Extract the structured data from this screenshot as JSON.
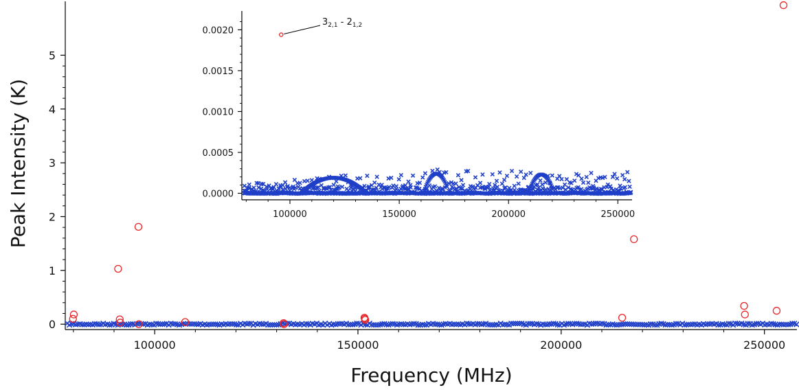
{
  "chart_data": [
    {
      "type": "scatter",
      "title": "",
      "xlabel": "Frequency (MHz)",
      "ylabel": "Peak Intensity (K)",
      "xlim": [
        78000,
        258000
      ],
      "ylim": [
        -0.1,
        5.95
      ],
      "xticks": [
        100000,
        150000,
        200000,
        250000
      ],
      "yticks": [
        0,
        1,
        2,
        3,
        4,
        5
      ],
      "grid": false,
      "legend": "none",
      "colors": {
        "detected": "#e8262a",
        "predicted": "#1f3fc8"
      },
      "series": [
        {
          "marker": "circle",
          "color": "#e8262a",
          "points": [
            [
              80100,
              0.18
            ],
            [
              79900,
              0.1
            ],
            [
              91000,
              1.03
            ],
            [
              91400,
              0.09
            ],
            [
              91500,
              0.03
            ],
            [
              96000,
              1.81
            ],
            [
              96100,
              0.0
            ],
            [
              107500,
              0.04
            ],
            [
              131700,
              0.02
            ],
            [
              131800,
              0.0
            ],
            [
              151600,
              0.12
            ],
            [
              151700,
              0.1
            ],
            [
              151800,
              0.08
            ],
            [
              215000,
              0.12
            ],
            [
              217900,
              1.58
            ],
            [
              245000,
              0.34
            ],
            [
              245200,
              0.18
            ],
            [
              253000,
              0.25
            ],
            [
              254700,
              5.93
            ]
          ]
        },
        {
          "marker": "cross",
          "color": "#1f3fc8",
          "x_range": [
            78000,
            258000
          ],
          "level": 0.0
        }
      ]
    },
    {
      "type": "scatter",
      "title": "",
      "xlabel": "",
      "ylabel": "",
      "xlim": [
        78000,
        256500
      ],
      "ylim": [
        -8e-05,
        0.00223
      ],
      "xticks": [
        100000,
        150000,
        200000,
        250000
      ],
      "yticks": [
        "0.0000",
        "0.0005",
        "0.0010",
        "0.0015",
        "0.0020"
      ],
      "grid": false,
      "annotation": {
        "point": [
          96000,
          0.00194
        ],
        "base": "3",
        "sub1": "2,1",
        "sep": " - ",
        "base2": "2",
        "sub2": "1,2"
      },
      "series": [
        {
          "marker": "circle",
          "color": "#e8262a",
          "points": [
            [
              96000,
              0.00194
            ]
          ]
        },
        {
          "marker": "cross",
          "color": "#1f3fc8",
          "x_range": [
            79000,
            256000
          ],
          "envelope": [
            [
              79000,
              0.00012
            ],
            [
              100000,
              0.00016
            ],
            [
              120000,
              0.00021
            ],
            [
              135000,
              0.00025
            ],
            [
              150000,
              0.00028
            ],
            [
              167000,
              0.0003
            ],
            [
              185000,
              0.00027
            ],
            [
              200000,
              0.00028
            ],
            [
              215000,
              0.00025
            ],
            [
              235000,
              0.00026
            ],
            [
              256000,
              0.0003
            ]
          ]
        }
      ]
    }
  ]
}
